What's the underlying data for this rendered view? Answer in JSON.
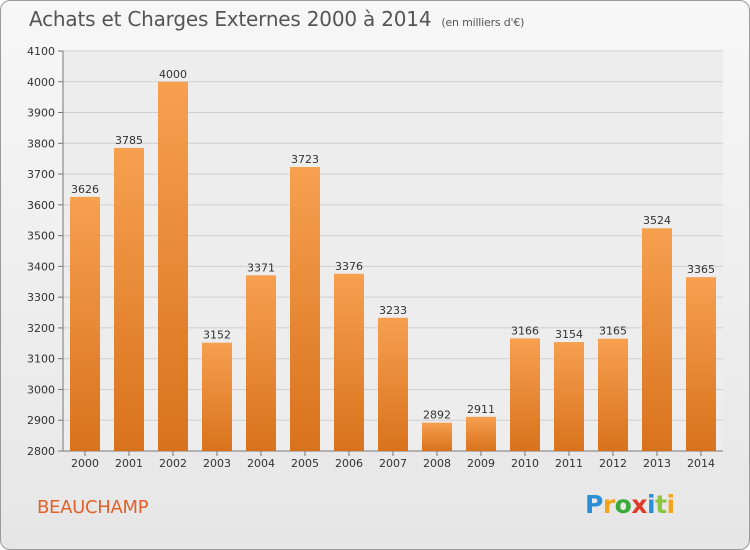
{
  "title": "Achats et Charges Externes 2000 à 2014",
  "unit_note": "(en milliers d'€)",
  "city": "BEAUCHAMP",
  "logo": {
    "letters": [
      "P",
      "r",
      "o",
      "x",
      "i",
      "t",
      "i"
    ],
    "colors": [
      "#2a8fd6",
      "#f2a51c",
      "#3aab3a",
      "#e03b2a",
      "#2a8fd6",
      "#8cc63f",
      "#f2a51c"
    ]
  },
  "colors": {
    "bar_top": "#f6a050",
    "bar_bottom": "#d9721c",
    "label": "#333333",
    "city": "#e0622a"
  },
  "chart_data": {
    "type": "bar",
    "title": "Achats et Charges Externes 2000 à 2014",
    "categories": [
      "2000",
      "2001",
      "2002",
      "2003",
      "2004",
      "2005",
      "2006",
      "2007",
      "2008",
      "2009",
      "2010",
      "2011",
      "2012",
      "2013",
      "2014"
    ],
    "values": [
      3626,
      3785,
      4000,
      3152,
      3371,
      3723,
      3376,
      3233,
      2892,
      2911,
      3166,
      3154,
      3165,
      3524,
      3365
    ],
    "ylim": [
      2800,
      4100
    ],
    "yticks": [
      2800,
      2900,
      3000,
      3100,
      3200,
      3300,
      3400,
      3500,
      3600,
      3700,
      3800,
      3900,
      4000,
      4100
    ],
    "grid": true,
    "data_labels": true
  }
}
